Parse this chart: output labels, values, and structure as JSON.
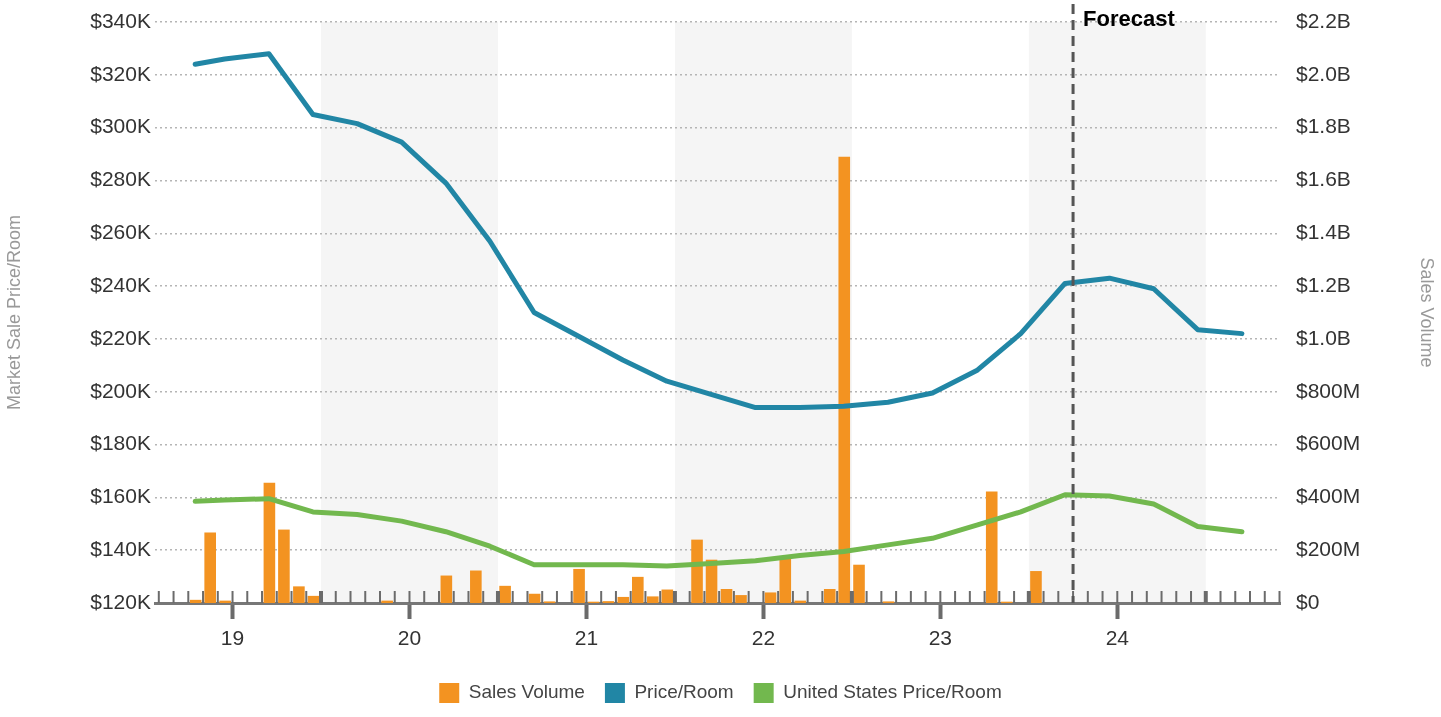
{
  "chart_data": {
    "type": "line",
    "ylabel": "Market Sale Price/Room",
    "y2label": "Sales Volume",
    "xlim": [
      "2019-01-24",
      "2025-06-02"
    ],
    "xticks": [
      {
        "value": "2020-01-01",
        "label": null
      },
      {
        "value": "2021-01-01",
        "label": null
      },
      {
        "value": "2022-01-01",
        "label": null
      },
      {
        "value": "2023-01-01",
        "label": null
      },
      {
        "value": "2024-01-01",
        "label": null
      },
      {
        "value": "2025-01-01",
        "label": null
      },
      {
        "value": "2019-07-01",
        "label": "19"
      },
      {
        "value": "2020-07-01",
        "label": "20"
      },
      {
        "value": "2021-07-01",
        "label": "21"
      },
      {
        "value": "2022-07-01",
        "label": "22"
      },
      {
        "value": "2023-07-01",
        "label": "23"
      },
      {
        "value": "2024-07-01",
        "label": "24"
      }
    ],
    "ylim": [
      120,
      340
    ],
    "yticks": [
      {
        "value": 120,
        "label": "$120K"
      },
      {
        "value": 140,
        "label": "$140K"
      },
      {
        "value": 160,
        "label": "$160K"
      },
      {
        "value": 180,
        "label": "$180K"
      },
      {
        "value": 200,
        "label": "$200K"
      },
      {
        "value": 220,
        "label": "$220K"
      },
      {
        "value": 240,
        "label": "$240K"
      },
      {
        "value": 260,
        "label": "$260K"
      },
      {
        "value": 280,
        "label": "$280K"
      },
      {
        "value": 300,
        "label": "$300K"
      },
      {
        "value": 320,
        "label": "$320K"
      },
      {
        "value": 340,
        "label": "$340K"
      }
    ],
    "y2lim": [
      0,
      2200000000
    ],
    "y2ticks": [
      {
        "value": 0,
        "label": "$0"
      },
      {
        "value": 200000000,
        "label": "$200M"
      },
      {
        "value": 400000000,
        "label": "$400M"
      },
      {
        "value": 600000000,
        "label": "$600M"
      },
      {
        "value": 800000000,
        "label": "$800M"
      },
      {
        "value": 1000000000,
        "label": "$1.0B"
      },
      {
        "value": 1200000000,
        "label": "$1.2B"
      },
      {
        "value": 1400000000,
        "label": "$1.4B"
      },
      {
        "value": 1600000000,
        "label": "$1.6B"
      },
      {
        "value": 1800000000,
        "label": "$1.8B"
      },
      {
        "value": 2000000000,
        "label": "$2.0B"
      },
      {
        "value": 2200000000,
        "label": "$2.2B"
      }
    ],
    "grid": "y",
    "legend": "bottom",
    "marker": "none",
    "line_style": "solid",
    "bands": [
      {
        "axis": "x",
        "from": "2020-01-01",
        "to": "2021-01-01",
        "color": "#f5f5f5"
      },
      {
        "axis": "x",
        "from": "2022-01-01",
        "to": "2023-01-01",
        "color": "#f5f5f5"
      },
      {
        "axis": "x",
        "from": "2024-01-01",
        "to": "2025-01-01",
        "color": "#f5f5f5"
      }
    ],
    "ref_lines": [
      {
        "axis": "x",
        "value": "2024-04-01",
        "label": "Forecast",
        "color": "#555555",
        "line_style": "dashed"
      }
    ],
    "series": [
      {
        "name": "Sales Volume",
        "type": "bar",
        "axis": "y2",
        "color": "#f39321",
        "x": [
          "2019-04-16",
          "2019-05-16",
          "2019-06-16",
          "2019-09-16",
          "2019-10-16",
          "2019-11-16",
          "2019-12-16",
          "2020-05-16",
          "2020-09-16",
          "2020-11-16",
          "2021-01-16",
          "2021-03-16",
          "2021-04-16",
          "2021-06-16",
          "2021-07-16",
          "2021-08-16",
          "2021-09-16",
          "2021-10-16",
          "2021-11-16",
          "2021-12-16",
          "2022-02-15",
          "2022-03-16",
          "2022-04-16",
          "2022-05-16",
          "2022-07-16",
          "2022-08-16",
          "2022-09-16",
          "2022-11-16",
          "2022-12-16",
          "2023-01-16",
          "2023-03-16",
          "2023-10-16",
          "2023-11-16",
          "2024-01-16"
        ],
        "values": [
          12000000,
          267000000,
          9000000,
          455000000,
          278000000,
          63000000,
          27000000,
          9000000,
          104000000,
          123000000,
          65000000,
          35000000,
          6000000,
          129000000,
          5000000,
          7000000,
          23000000,
          99000000,
          25000000,
          51000000,
          240000000,
          164000000,
          53000000,
          30000000,
          40000000,
          177000000,
          9000000,
          53000000,
          1690000000,
          145000000,
          6000000,
          422000000,
          5000000,
          121000000
        ]
      },
      {
        "name": "Price/Room",
        "color": "#2186a5",
        "x": [
          "2019-04-15",
          "2019-06-15",
          "2019-09-15",
          "2019-12-15",
          "2020-03-15",
          "2020-06-15",
          "2020-09-15",
          "2020-12-15",
          "2021-03-15",
          "2021-06-15",
          "2021-09-15",
          "2021-12-15",
          "2022-03-15",
          "2022-06-15",
          "2022-09-15",
          "2022-12-15",
          "2023-03-15",
          "2023-06-15",
          "2023-09-15",
          "2023-12-15",
          "2024-03-15",
          "2024-06-15",
          "2024-09-15",
          "2024-12-15",
          "2025-03-15"
        ],
        "values": [
          324,
          326,
          328,
          305,
          301.5,
          294.5,
          279,
          257,
          230,
          221,
          212,
          204,
          199,
          194,
          194,
          194.5,
          196,
          199.5,
          208,
          222,
          241,
          243,
          239,
          223.5,
          222
        ]
      },
      {
        "name": "United States Price/Room",
        "color": "#72b84e",
        "x": [
          "2019-04-15",
          "2019-06-15",
          "2019-09-15",
          "2019-12-15",
          "2020-03-15",
          "2020-06-15",
          "2020-09-15",
          "2020-12-15",
          "2021-03-15",
          "2021-06-15",
          "2021-09-15",
          "2021-12-15",
          "2022-03-15",
          "2022-06-15",
          "2022-09-15",
          "2022-12-15",
          "2023-03-15",
          "2023-06-15",
          "2023-09-15",
          "2023-12-15",
          "2024-03-15",
          "2024-06-15",
          "2024-09-15",
          "2024-12-15",
          "2025-03-15"
        ],
        "values": [
          158.5,
          159,
          159.5,
          154.5,
          153.5,
          151,
          147,
          141.5,
          134.5,
          134.5,
          134.5,
          134,
          135,
          136,
          138,
          139.5,
          142,
          144.5,
          149.5,
          154.5,
          161,
          160.5,
          157.5,
          149,
          147
        ]
      }
    ]
  }
}
